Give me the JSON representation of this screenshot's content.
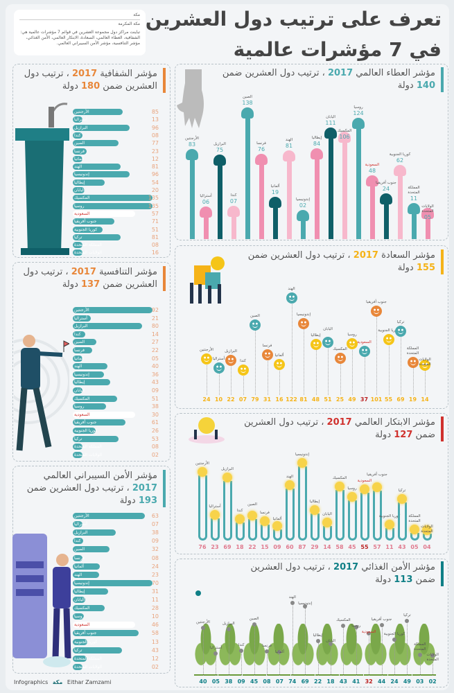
{
  "header": {
    "title_line1": "تعرف على ترتيب دول العشرين",
    "title_line2": "في 7 مؤشرات عالمية",
    "source_line1": "مكة",
    "source_line2": "مكة المكرمة",
    "intro": "تباينت مراكز دول مجموعة العشرين في قوائم 7 مؤشرات عالمية هي: الشفافية، العطاء العالمي، السعادة، الابتكار العالمي، الأمن الغذائي، مؤشر التنافسية، مؤشر الأمن السيبراني العالمي."
  },
  "countries": [
    "الأرجنتين",
    "أستراليا",
    "البرازيل",
    "كندا",
    "الصين",
    "فرنسا",
    "ألمانيا",
    "الهند",
    "إندونيسيا",
    "إيطاليا",
    "اليابان",
    "المكسيك",
    "روسيا",
    "السعودية",
    "جنوب أفريقيا",
    "كوريا الجنوبية",
    "تركيا",
    "المملكة المتحدة",
    "الولايات المتحدة"
  ],
  "colors": {
    "teal": "#4aa9ae",
    "dark_teal": "#0f5f68",
    "pink": "#f08fb0",
    "orange": "#e8873a",
    "yellow": "#f5c518",
    "saudi_red": "#d0312d"
  },
  "transparency": {
    "pre": "مؤشر الشفافية",
    "year": "2017",
    "mid": "، ترتيب دول العشرين ضمن",
    "count": "180",
    "post": "دولة",
    "accent": "#e8873a",
    "values": [
      "85",
      "13",
      "96",
      "08",
      "77",
      "23",
      "12",
      "81",
      "96",
      "54",
      "20",
      "135",
      "135",
      "57",
      "71",
      "51",
      "81",
      "08",
      "16"
    ]
  },
  "competitiveness": {
    "pre": "مؤشر التنافسية",
    "year": "2017",
    "mid": "، ترتيب دول العشرين ضمن",
    "count": "137",
    "post": "دولة",
    "accent": "#e8873a",
    "values": [
      "92",
      "21",
      "80",
      "14",
      "27",
      "22",
      "05",
      "40",
      "36",
      "43",
      "09",
      "51",
      "38",
      "30",
      "61",
      "26",
      "53",
      "08",
      "02"
    ]
  },
  "cyber": {
    "pre": "مؤشر الأمن السيبراني العالمي",
    "year": "2017",
    "mid": "، ترتيب دول العشرين ضمن",
    "count": "193",
    "post": "دولة",
    "accent": "#4aa9ae",
    "values": [
      "63",
      "07",
      "38",
      "09",
      "32",
      "08",
      "24",
      "23",
      "70",
      "31",
      "11",
      "28",
      "10",
      "46",
      "58",
      "13",
      "43",
      "12",
      "02"
    ]
  },
  "giving": {
    "pre": "مؤشر العطاء العالمي",
    "year": "2017",
    "mid": "، ترتيب دول العشرين ضمن",
    "count": "140",
    "post": "دولة",
    "accent": "#4aa9ae",
    "countries": [
      "الأرجنتين",
      "أستراليا",
      "البرازيل",
      "كندا",
      "الصين",
      "فرنسا",
      "ألمانيا",
      "الهند",
      "إندونيسيا",
      "إيطاليا",
      "اليابان",
      "المكسيك",
      "روسيا",
      "السعودية",
      "جنوب أفريقيا",
      "كوريا الجنوبية",
      "المملكة المتحدة",
      "الولايات المتحدة"
    ],
    "values": [
      "83",
      "06",
      "75",
      "07",
      "138",
      "76",
      "19",
      "81",
      "02",
      "84",
      "111",
      "106",
      "124",
      "48",
      "24",
      "62",
      "11",
      "05"
    ]
  },
  "happiness": {
    "pre": "مؤشر السعادة",
    "year": "2017",
    "mid": "، ترتيب دول العشرين ضمن",
    "count": "155",
    "post": "دولة",
    "accent": "#f5b318",
    "values": [
      "24",
      "10",
      "22",
      "07",
      "79",
      "31",
      "16",
      "122",
      "81",
      "48",
      "51",
      "25",
      "49",
      "37",
      "101",
      "55",
      "69",
      "19",
      "14"
    ]
  },
  "innovation": {
    "pre": "مؤشر الابتكار العالمي",
    "year": "2017",
    "mid": "، ترتيب دول العشرين ضمن",
    "count": "127",
    "post": "دولة",
    "accent": "#d0312d",
    "values": [
      "76",
      "23",
      "69",
      "18",
      "22",
      "15",
      "09",
      "60",
      "87",
      "29",
      "14",
      "58",
      "45",
      "55",
      "57",
      "11",
      "43",
      "05",
      "04"
    ]
  },
  "food": {
    "pre": "مؤشر الأمن الغذائي",
    "year": "2017",
    "mid": "، ترتيب دول العشرين ضمن",
    "count": "113",
    "post": "دولة",
    "accent": "#0f7f86",
    "values": [
      "40",
      "05",
      "38",
      "09",
      "45",
      "08",
      "07",
      "74",
      "69",
      "22",
      "18",
      "43",
      "41",
      "32",
      "44",
      "24",
      "49",
      "03",
      "02"
    ]
  },
  "footer": {
    "label": "Infographics",
    "brand": "مكة",
    "author": "Eithar Zamzami"
  }
}
